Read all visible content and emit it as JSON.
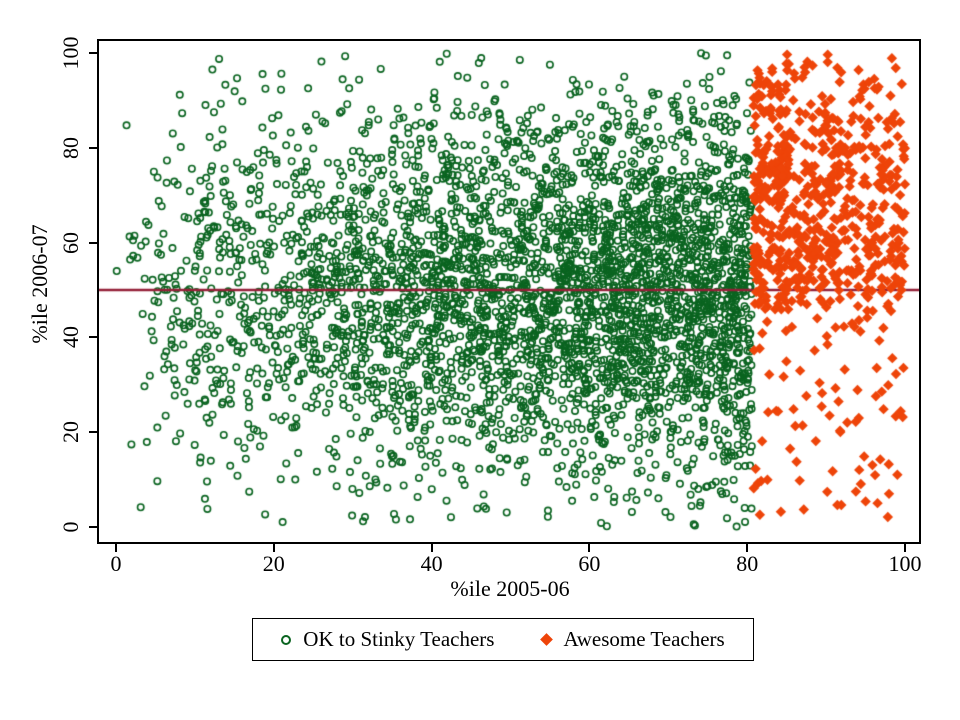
{
  "chart_data": {
    "type": "scatter",
    "title": "",
    "xlabel": "%ile 2005-06",
    "ylabel": "%ile 2006-07",
    "xlim": [
      0,
      100
    ],
    "ylim": [
      0,
      100
    ],
    "x_ticks": [
      0,
      20,
      40,
      60,
      80,
      100
    ],
    "y_ticks": [
      0,
      20,
      40,
      60,
      80,
      100
    ],
    "grid": false,
    "frame_color": "#000000",
    "background_color": "#ffffff",
    "reference_line": {
      "axis": "y",
      "value": 50,
      "color": "#941f37",
      "width": 2.4
    },
    "series_split_x": 80,
    "series": [
      {
        "name": "OK to Stinky Teachers",
        "marker": "circle-open",
        "color": "#0a6420",
        "count": 3900,
        "seed": 20061,
        "marker_radius": 3.2,
        "x_dist": {
          "type": "power",
          "min": 0,
          "max": 80.6,
          "exp": 0.55
        },
        "y_dist": {
          "type": "normal",
          "mean": 49,
          "sd": 20,
          "min": 0,
          "max": 100
        }
      },
      {
        "name": "Awesome Teachers",
        "marker": "diamond",
        "color": "#ee4409",
        "count": 720,
        "seed": 2007,
        "marker_radius": 5.2,
        "x_dist": {
          "type": "power",
          "min": 80.8,
          "max": 100,
          "exp": 1.25
        },
        "y_dist": {
          "type": "mixture",
          "min": 0,
          "max": 100,
          "components": [
            {
              "weight": 0.7,
              "type": "normal",
              "mean": 74,
              "sd": 15
            },
            {
              "weight": 0.2,
              "type": "normal",
              "mean": 56,
              "sd": 6
            },
            {
              "weight": 0.1,
              "type": "uniform",
              "min": 2,
              "max": 55
            }
          ]
        }
      }
    ],
    "legend": {
      "position": "bottom-center",
      "border": true
    }
  }
}
